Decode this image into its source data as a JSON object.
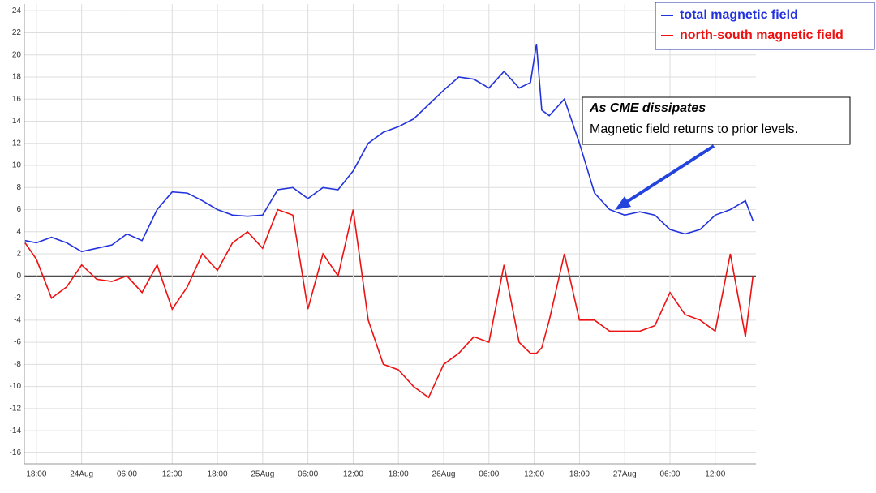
{
  "chart_data": {
    "type": "line",
    "x": [
      16.5,
      18,
      20,
      22,
      24,
      26,
      28,
      30,
      32,
      34,
      36,
      38,
      40,
      42,
      44,
      46,
      48,
      50,
      52,
      54,
      56,
      58,
      60,
      62,
      64,
      66,
      68,
      70,
      72,
      74,
      76,
      78,
      80,
      82,
      83.5,
      84.3,
      85,
      86,
      88,
      90,
      92,
      94,
      96,
      98,
      100,
      102,
      104,
      106,
      108,
      110,
      112,
      113
    ],
    "series": [
      {
        "name": "total magnetic field",
        "color": "#2233dd",
        "values": [
          3.2,
          3,
          3.5,
          3,
          2.2,
          2.5,
          2.8,
          3.8,
          3.2,
          6,
          7.6,
          7.5,
          6.8,
          6,
          5.5,
          5.4,
          5.5,
          7.8,
          8,
          7,
          8,
          7.8,
          9.5,
          12,
          13,
          13.5,
          14.2,
          15.5,
          16.8,
          18,
          17.8,
          17,
          18.5,
          17,
          17.5,
          21,
          15,
          14.5,
          16,
          12,
          7.5,
          6,
          5.5,
          5.8,
          5.5,
          4.2,
          3.8,
          4.2,
          5.5,
          6,
          6.8,
          5
        ]
      },
      {
        "name": "north-south magnetic field",
        "color": "#ee1111",
        "values": [
          3,
          1.5,
          -2,
          -1,
          1,
          -0.3,
          -0.5,
          0,
          -1.5,
          1,
          -3,
          -1,
          2,
          0.5,
          3,
          4,
          2.5,
          6,
          5.5,
          -3,
          2,
          0,
          6,
          -4,
          -8,
          -8.5,
          -10,
          -11,
          -8,
          -7,
          -5.5,
          -6,
          1,
          -6,
          -7,
          -7,
          -6.5,
          -4,
          2,
          -4,
          -4,
          -5,
          -5,
          -5,
          -4.5,
          -1.5,
          -3.5,
          -4,
          -5,
          2,
          -5.5,
          0
        ]
      }
    ],
    "xlim": [
      16.4,
      113.4
    ],
    "xticks": [
      {
        "value": 18,
        "label": "18:00"
      },
      {
        "value": 24,
        "label": "24Aug"
      },
      {
        "value": 30,
        "label": "06:00"
      },
      {
        "value": 36,
        "label": "12:00"
      },
      {
        "value": 42,
        "label": "18:00"
      },
      {
        "value": 48,
        "label": "25Aug"
      },
      {
        "value": 54,
        "label": "06:00"
      },
      {
        "value": 60,
        "label": "12:00"
      },
      {
        "value": 66,
        "label": "18:00"
      },
      {
        "value": 72,
        "label": "26Aug"
      },
      {
        "value": 78,
        "label": "06:00"
      },
      {
        "value": 84,
        "label": "12:00"
      },
      {
        "value": 90,
        "label": "18:00"
      },
      {
        "value": 96,
        "label": "27Aug"
      },
      {
        "value": 102,
        "label": "06:00"
      },
      {
        "value": 108,
        "label": "12:00"
      }
    ],
    "ylim": [
      -17,
      24.6
    ],
    "yticks": [
      -16,
      -14,
      -12,
      -10,
      -8,
      -6,
      -4,
      -2,
      0,
      2,
      4,
      6,
      8,
      10,
      12,
      14,
      16,
      18,
      20,
      22,
      24
    ],
    "grid": true,
    "legend": "upper right",
    "annotation": {
      "title": "As CME dissipates",
      "text": "Magnetic field returns to prior levels."
    }
  }
}
